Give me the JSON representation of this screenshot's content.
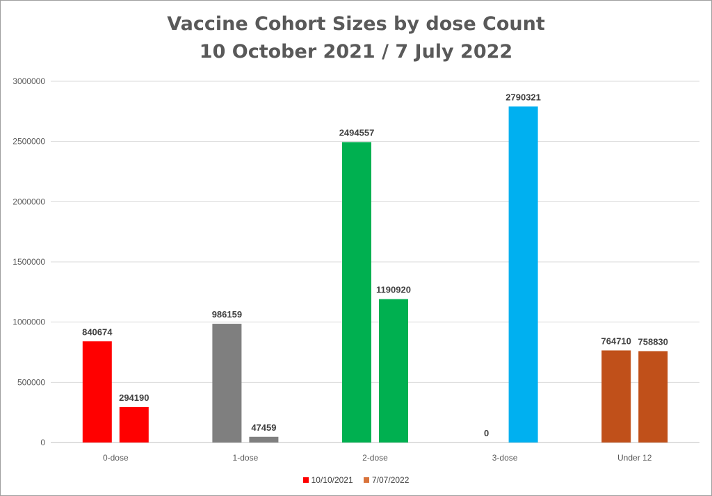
{
  "chart_data": {
    "type": "bar",
    "title": [
      "Vaccine Cohort Sizes by dose Count",
      "10 October 2021 / 7 July 2022"
    ],
    "categories": [
      "0-dose",
      "1-dose",
      "2-dose",
      "3-dose",
      "Under 12"
    ],
    "series": [
      {
        "name": "10/10/2021",
        "values": [
          840674,
          986159,
          2494557,
          0,
          764710
        ]
      },
      {
        "name": "7/07/2022",
        "values": [
          294190,
          47459,
          1190920,
          2790321,
          758830
        ]
      }
    ],
    "bar_colors": [
      [
        "#ff0000",
        "#ff0000"
      ],
      [
        "#7f7f7f",
        "#7f7f7f"
      ],
      [
        "#00b050",
        "#00b050"
      ],
      [
        "#00b0f0",
        "#00b0f0"
      ],
      [
        "#c0501a",
        "#c0501a"
      ]
    ],
    "legend_colors": [
      "#ff0000",
      "#d9733b"
    ],
    "ylim": [
      0,
      3000000
    ],
    "yticks": [
      "0",
      "500000",
      "1000000",
      "1500000",
      "2000000",
      "2500000",
      "3000000"
    ],
    "grid": true,
    "legend_position": "bottom"
  }
}
